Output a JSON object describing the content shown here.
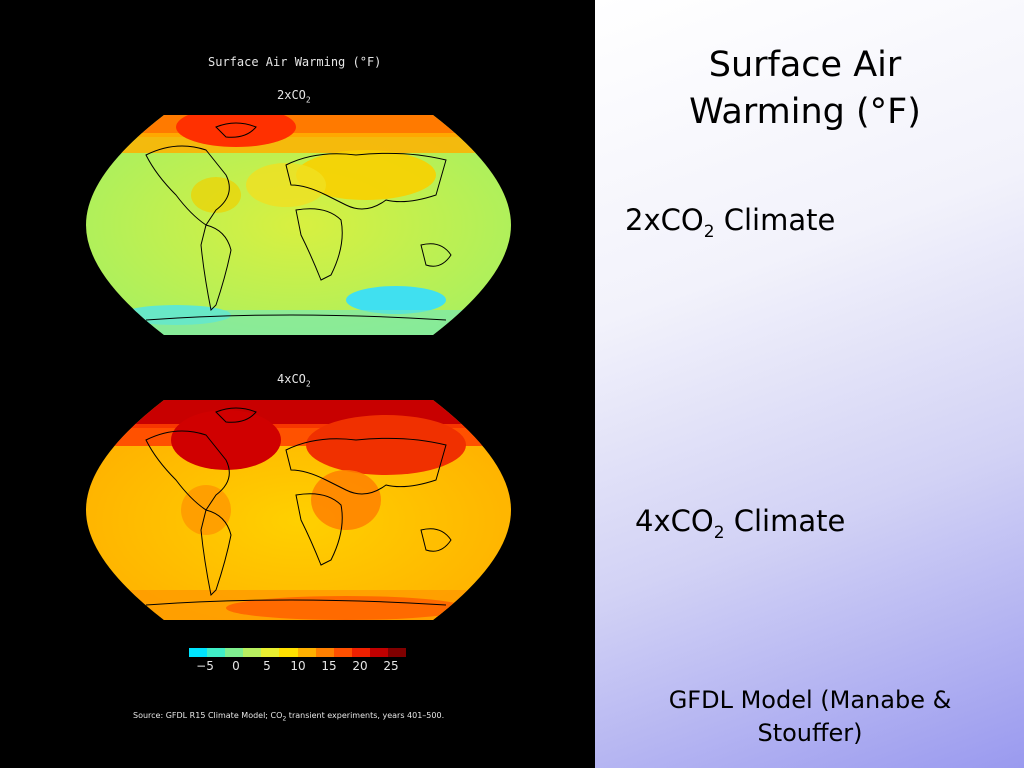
{
  "figure": {
    "title": "Surface Air Warming (°F)",
    "map_top_label_base": "2xCO",
    "map_top_label_sub": "2",
    "map_bottom_label_base": "4xCO",
    "map_bottom_label_sub": "2",
    "colorbar": {
      "ticks": [
        "−5",
        "0",
        "5",
        "10",
        "15",
        "20",
        "25"
      ],
      "colors": [
        "#00e5ff",
        "#40f0c8",
        "#80f090",
        "#b8f060",
        "#e8f030",
        "#ffe000",
        "#ffb000",
        "#ff8000",
        "#ff5000",
        "#f02000",
        "#c00000",
        "#800000"
      ]
    },
    "source_prefix": "Source:  GFDL R15 Climate Model; CO",
    "source_sub": "2",
    "source_suffix": " transient experiments, years 401–500."
  },
  "slide": {
    "title": "Surface Air Warming (°F)",
    "label_2x_base": "2xCO",
    "label_2x_sub": "2",
    "label_2x_suffix": " Climate",
    "label_4x_base": "4xCO",
    "label_4x_sub": "2",
    "label_4x_suffix": " Climate",
    "footer": "GFDL Model (Manabe & Stouffer)"
  }
}
